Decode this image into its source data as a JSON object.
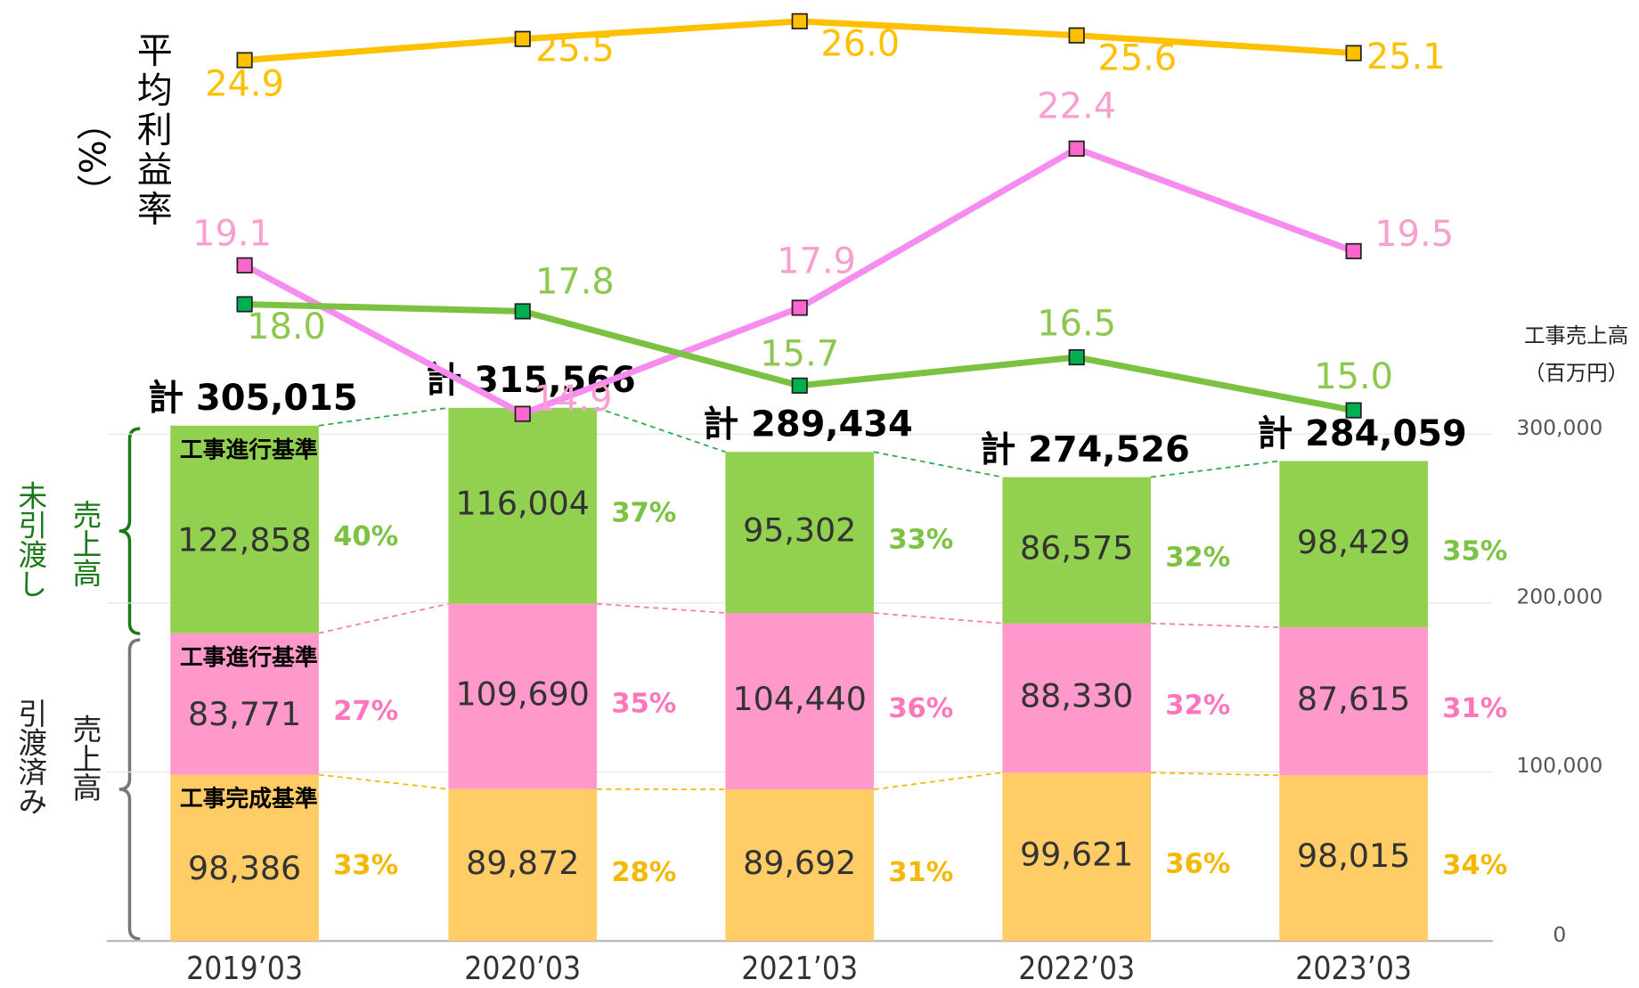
{
  "chart_data": {
    "type": "bar",
    "categories": [
      "2019’03",
      "2020’03",
      "2021’03",
      "2022’03",
      "2023’03"
    ],
    "y_label": "工事売上高",
    "y_unit": "（百万円）",
    "y2_label": "平均利益率",
    "y2_unit": "（%）",
    "groups": [
      {
        "label": "未引渡し",
        "sublabel": "売上高"
      },
      {
        "label": "引渡済み",
        "sublabel": "売上高"
      }
    ],
    "ylim": [
      0,
      500000
    ],
    "yticks": [
      0,
      {
        "value": 100000,
        "label": "100,000"
      },
      {
        "value": 200000,
        "label": "200,000"
      },
      {
        "value": 300000,
        "label": "300,000"
      }
    ],
    "y2lim": [
      0,
      26.6
    ],
    "grid": true,
    "totals": [
      305015,
      315566,
      289434,
      274526,
      284059
    ],
    "total_labels": [
      "計 305,015",
      "計 315,566",
      "計 289,434",
      "計 274,526",
      "計 284,059"
    ],
    "series": [
      {
        "name": "工事完成基準",
        "type": "bar",
        "color": "#ffcc66",
        "label_color": "#f5b800",
        "values": [
          98386,
          89872,
          89692,
          99621,
          98015
        ],
        "value_labels": [
          "98,386",
          "89,872",
          "89,692",
          "99,621",
          "98,015"
        ],
        "shares": [
          33,
          28,
          31,
          36,
          34
        ],
        "share_labels": [
          "33%",
          "28%",
          "31%",
          "36%",
          "34%"
        ]
      },
      {
        "name": "工事進行基準",
        "type": "bar",
        "color": "#ff99cc",
        "label_color": "#ff77bb",
        "values": [
          83771,
          109690,
          104440,
          88330,
          87615
        ],
        "value_labels": [
          "83,771",
          "109,690",
          "104,440",
          "88,330",
          "87,615"
        ],
        "shares": [
          27,
          35,
          36,
          32,
          31
        ],
        "share_labels": [
          "27%",
          "35%",
          "36%",
          "32%",
          "31%"
        ]
      },
      {
        "name": "工事進行基準",
        "type": "bar",
        "color": "#92d050",
        "label_color": "#7dc242",
        "values": [
          122858,
          116004,
          95302,
          86575,
          98429
        ],
        "value_labels": [
          "122,858",
          "116,004",
          "95,302",
          "86,575",
          "98,429"
        ],
        "shares": [
          40,
          37,
          33,
          32,
          35
        ],
        "share_labels": [
          "40%",
          "37%",
          "33%",
          "32%",
          "35%"
        ]
      },
      {
        "type": "line",
        "axis": "y2",
        "color": "#ffc000",
        "marker_color": "#ffc000",
        "label_color": "#ffc000",
        "values": [
          24.9,
          25.5,
          26.0,
          25.6,
          25.1
        ],
        "value_labels": [
          "24.9",
          "25.5",
          "26.0",
          "25.6",
          "25.1"
        ]
      },
      {
        "type": "line",
        "axis": "y2",
        "color": "#f78cf0",
        "marker_color": "#ff66cc",
        "label_color": "#f7a0d0",
        "values": [
          19.1,
          14.9,
          17.9,
          22.4,
          19.5
        ],
        "value_labels": [
          "19.1",
          "14.9",
          "17.9",
          "22.4",
          "19.5"
        ]
      },
      {
        "type": "line",
        "axis": "y2",
        "color": "#7cc242",
        "marker_color": "#00b050",
        "label_color": "#8cc850",
        "values": [
          18.0,
          17.8,
          15.7,
          16.5,
          15.0
        ],
        "value_labels": [
          "18.0",
          "17.8",
          "15.7",
          "16.5",
          "15.0"
        ]
      }
    ]
  }
}
